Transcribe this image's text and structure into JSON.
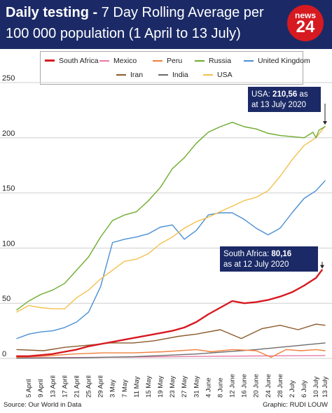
{
  "header": {
    "title_bold": "Daily testing -",
    "title_rest": " 7 Day Rolling Average per",
    "title_line2": "100 000 population (1 April to 13 July)",
    "logo_top": "news",
    "logo_number": "24"
  },
  "footer": {
    "source": "Source: Our World in Data",
    "credit": "Graphic: RUDI LOUW"
  },
  "chart_data": {
    "type": "line",
    "title": "Daily testing - 7 Day Rolling Average per 100 000 population (1 April to 13 July)",
    "xlabel": "",
    "ylabel": "",
    "ylim": [
      0,
      250
    ],
    "y_ticks": [
      0,
      50,
      100,
      150,
      200,
      250
    ],
    "x_ticks": [
      "5 April",
      "9 April",
      "13 April",
      "17 April",
      "21 April",
      "25 April",
      "29 April",
      "3 May",
      "7 May",
      "11 May",
      "15 May",
      "19 May",
      "23 May",
      "27 May",
      "31 May",
      "4 June",
      "8 June",
      "12 June",
      "16 June",
      "20 June",
      "24 June",
      "28 June",
      "2 July",
      "6 July",
      "10 July",
      "13 July"
    ],
    "grid": "horizontal",
    "legend_position": "top",
    "series": [
      {
        "name": "South Africa",
        "color": "#d71920",
        "x": [
          "1 April",
          "5 April",
          "9 April",
          "13 April",
          "17 April",
          "21 April",
          "25 April",
          "29 April",
          "3 May",
          "7 May",
          "11 May",
          "15 May",
          "19 May",
          "23 May",
          "27 May",
          "31 May",
          "4 June",
          "8 June",
          "12 June",
          "16 June",
          "20 June",
          "24 June",
          "28 June",
          "2 July",
          "6 July",
          "10 July",
          "12 July"
        ],
        "values": [
          2,
          2,
          3,
          4,
          6,
          8,
          11,
          13,
          15,
          17,
          19,
          21,
          23,
          25,
          28,
          33,
          40,
          46,
          52,
          50,
          51,
          53,
          56,
          60,
          66,
          73,
          80.16
        ]
      },
      {
        "name": "Mexico",
        "color": "#e87aa6",
        "x": [
          "1 April",
          "20 April",
          "10 May",
          "31 May",
          "20 June",
          "13 July"
        ],
        "values": [
          0.5,
          0.8,
          1.2,
          1.8,
          2.2,
          2.6
        ]
      },
      {
        "name": "Peru",
        "color": "#f07f3c",
        "x": [
          "1 April",
          "10 April",
          "20 April",
          "30 April",
          "10 May",
          "20 May",
          "31 May",
          "5 June",
          "12 June",
          "20 June",
          "25 June",
          "30 June",
          "5 July",
          "10 July",
          "13 July"
        ],
        "values": [
          1,
          2,
          4,
          5,
          5,
          6,
          8,
          6,
          8,
          7,
          1,
          8,
          7,
          8,
          7
        ]
      },
      {
        "name": "Russia",
        "color": "#6eab2d",
        "x": [
          "1 April",
          "5 April",
          "9 April",
          "13 April",
          "17 April",
          "21 April",
          "25 April",
          "29 April",
          "3 May",
          "7 May",
          "11 May",
          "15 May",
          "19 May",
          "23 May",
          "27 May",
          "31 May",
          "4 June",
          "8 June",
          "12 June",
          "16 June",
          "20 June",
          "24 June",
          "28 June",
          "2 July",
          "6 July",
          "9 July",
          "10 July",
          "11 July",
          "13 July"
        ],
        "values": [
          44,
          52,
          58,
          62,
          68,
          80,
          92,
          110,
          125,
          130,
          133,
          143,
          155,
          172,
          182,
          195,
          205,
          210,
          214,
          210,
          208,
          204,
          202,
          201,
          200,
          205,
          200,
          207,
          210
        ]
      },
      {
        "name": "United Kingdom",
        "color": "#4a8fd4",
        "x": [
          "1 April",
          "5 April",
          "9 April",
          "13 April",
          "17 April",
          "21 April",
          "25 April",
          "29 April",
          "3 May",
          "7 May",
          "11 May",
          "15 May",
          "19 May",
          "23 May",
          "27 May",
          "31 May",
          "4 June",
          "8 June",
          "12 June",
          "16 June",
          "20 June",
          "24 June",
          "28 June",
          "2 July",
          "6 July",
          "10 July",
          "13 July"
        ],
        "values": [
          18,
          22,
          24,
          25,
          28,
          33,
          42,
          65,
          105,
          108,
          110,
          113,
          119,
          121,
          108,
          116,
          130,
          132,
          132,
          126,
          118,
          112,
          118,
          132,
          145,
          152,
          161
        ]
      },
      {
        "name": "Iran",
        "color": "#8a5a2b",
        "x": [
          "1 April",
          "10 April",
          "17 April",
          "25 April",
          "2 May",
          "10 May",
          "17 May",
          "25 May",
          "31 May",
          "8 June",
          "15 June",
          "22 June",
          "28 June",
          "4 July",
          "10 July",
          "13 July"
        ],
        "values": [
          8,
          7,
          10,
          12,
          14,
          14,
          16,
          20,
          22,
          26,
          18,
          27,
          30,
          26,
          31,
          30
        ]
      },
      {
        "name": "India",
        "color": "#6b6b6b",
        "x": [
          "1 April",
          "20 April",
          "10 May",
          "31 May",
          "20 June",
          "13 July"
        ],
        "values": [
          0.2,
          0.5,
          1.5,
          4,
          8,
          14
        ]
      },
      {
        "name": "USA",
        "color": "#f2c14e",
        "x": [
          "1 April",
          "5 April",
          "9 April",
          "13 April",
          "17 April",
          "21 April",
          "25 April",
          "29 April",
          "3 May",
          "7 May",
          "11 May",
          "15 May",
          "19 May",
          "23 May",
          "27 May",
          "31 May",
          "4 June",
          "8 June",
          "12 June",
          "16 June",
          "20 June",
          "24 June",
          "28 June",
          "2 July",
          "6 July",
          "10 July",
          "13 July"
        ],
        "values": [
          42,
          48,
          46,
          45,
          45,
          55,
          62,
          72,
          80,
          88,
          90,
          95,
          104,
          110,
          118,
          124,
          128,
          133,
          138,
          143,
          146,
          152,
          165,
          180,
          193,
          200,
          210.56
        ]
      }
    ],
    "annotations": [
      {
        "series": "USA",
        "lines": [
          [
            "USA: ",
            "210,56",
            " as"
          ],
          [
            "at 13 July 2020",
            "",
            ""
          ]
        ],
        "x": "13 July",
        "y": 210.56
      },
      {
        "series": "South Africa",
        "lines": [
          [
            "South Africa: ",
            "80,16",
            ""
          ],
          [
            "as at 12 July 2020",
            "",
            ""
          ]
        ],
        "x": "12 July",
        "y": 80.16
      }
    ]
  },
  "colors": {
    "header_background": "#1b2a66",
    "logo_background": "#d71920",
    "annotation_background": "#1b2a66"
  }
}
